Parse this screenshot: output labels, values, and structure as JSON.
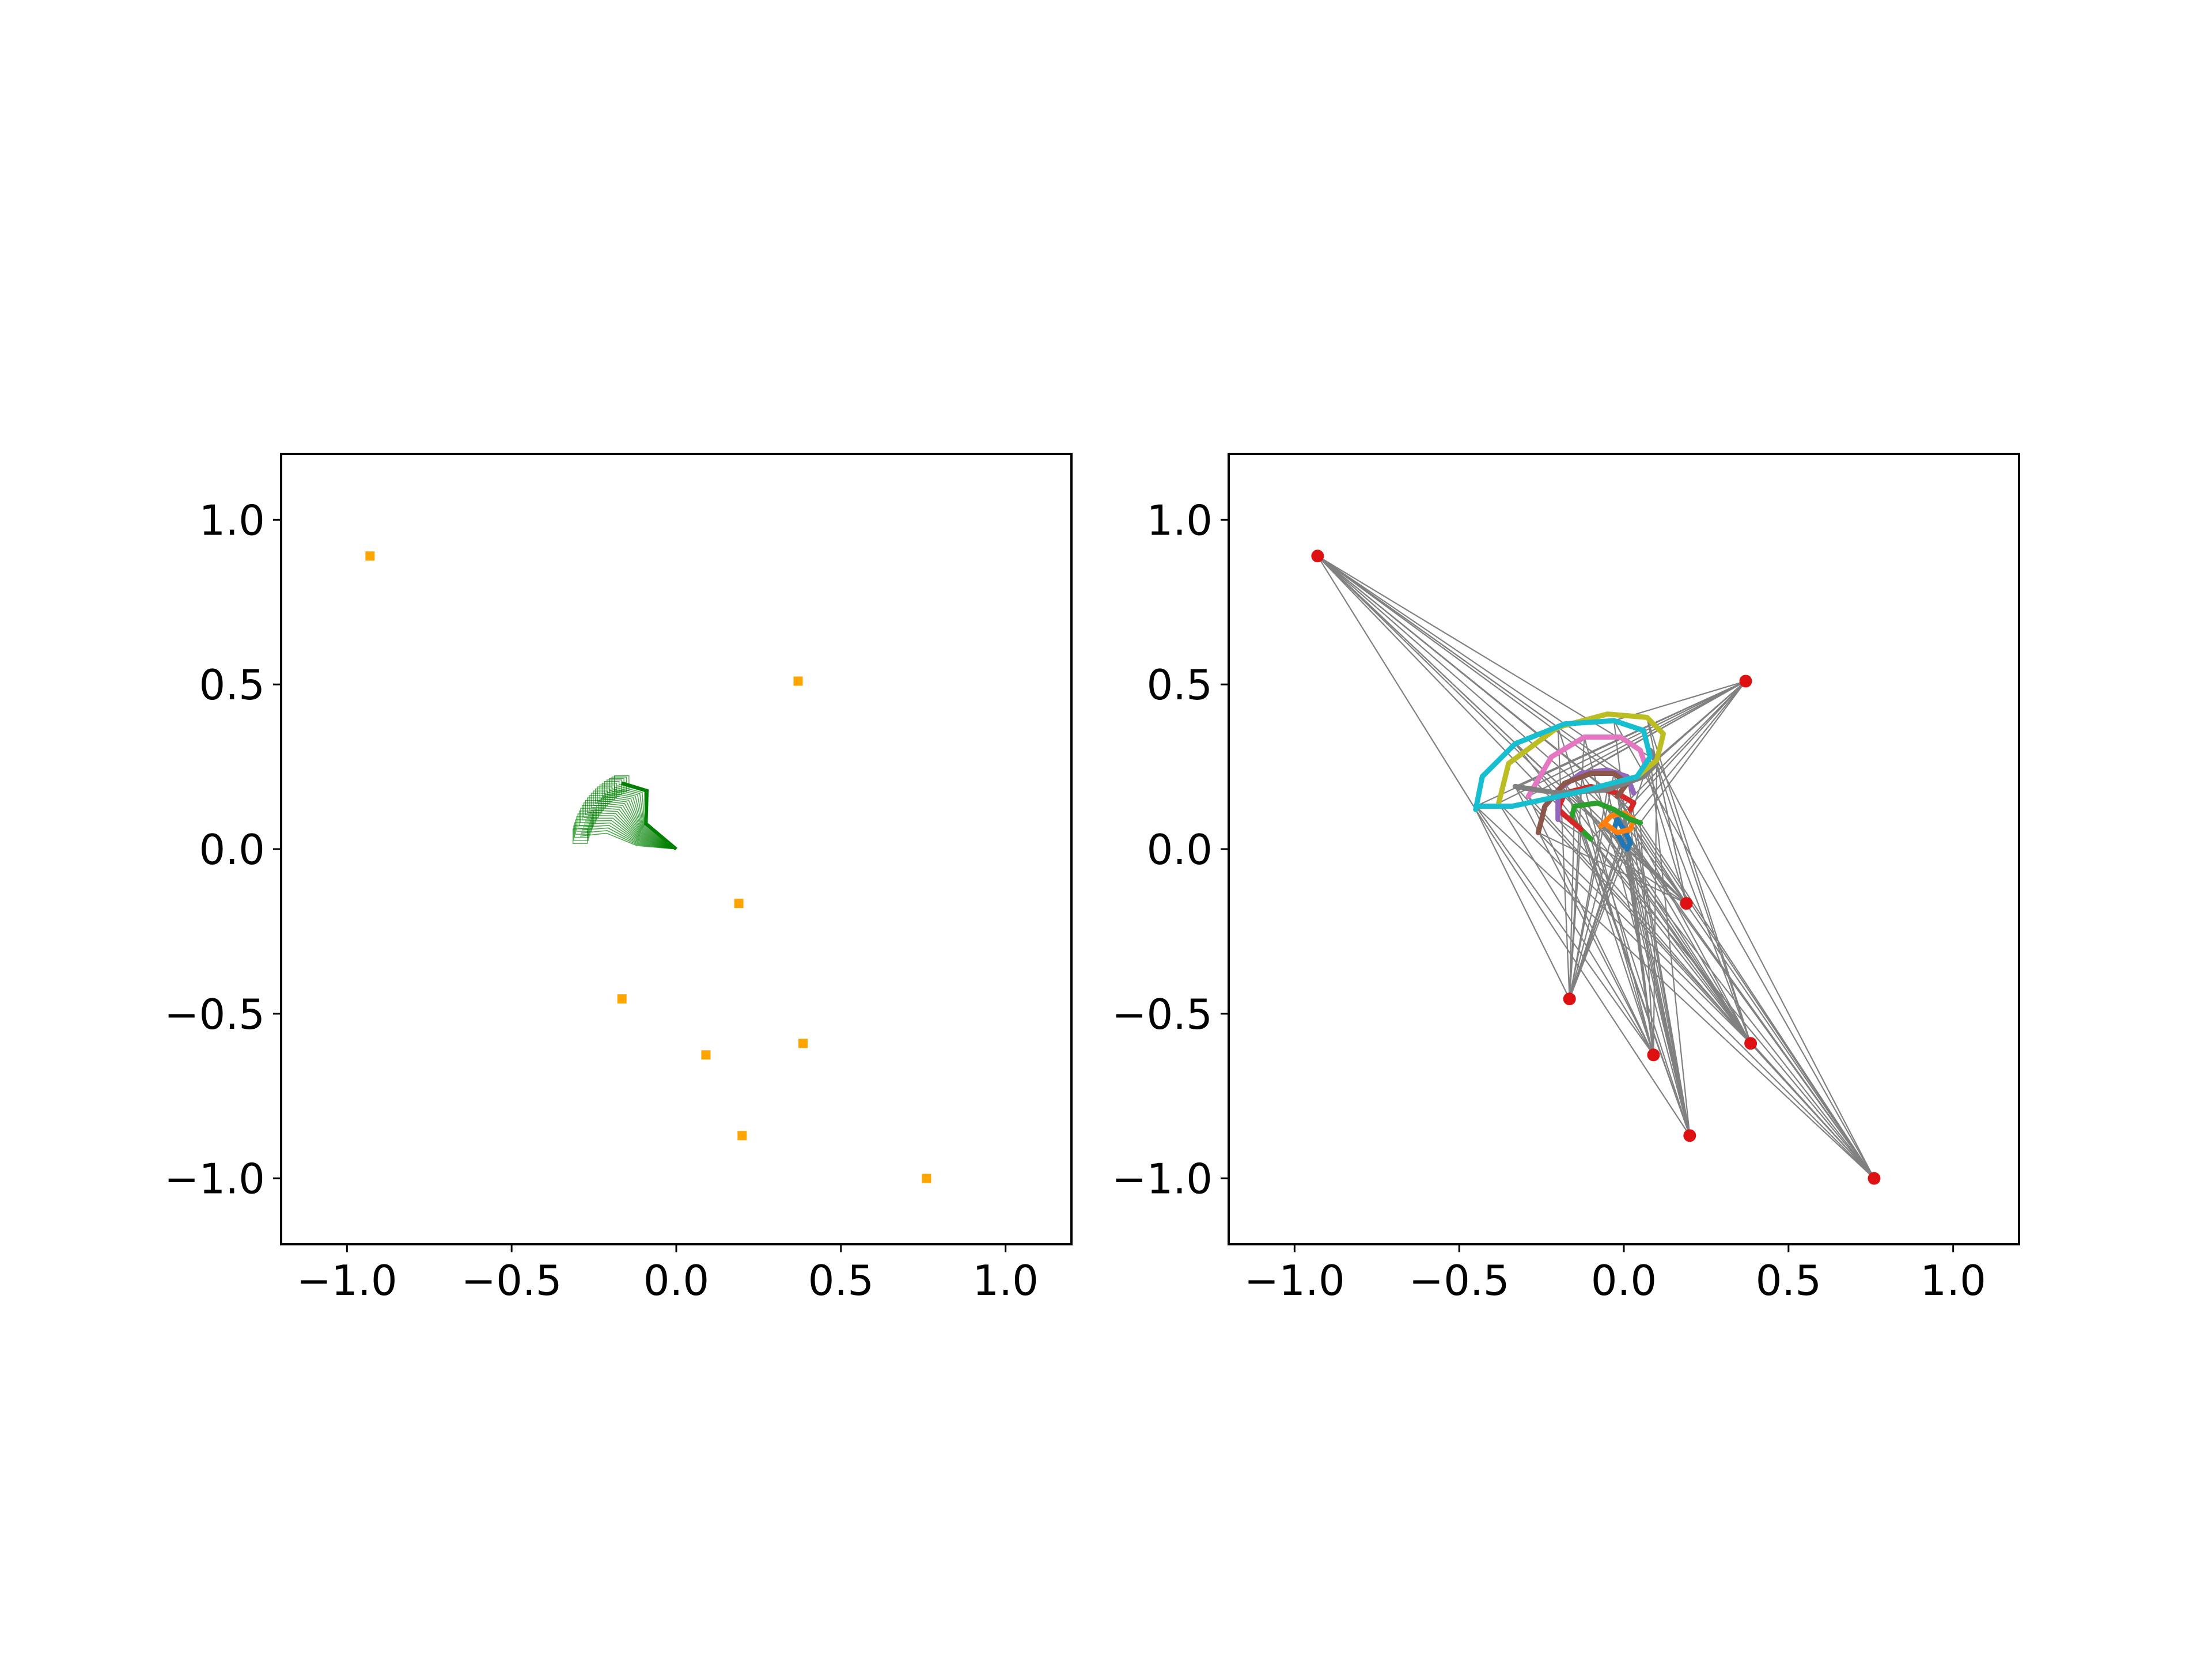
{
  "chart_data": [
    {
      "type": "scatter",
      "xlim": [
        -1.2,
        1.2
      ],
      "ylim": [
        -1.2,
        1.2
      ],
      "xticks": [
        -1.0,
        -0.5,
        0.0,
        0.5,
        1.0
      ],
      "yticks": [
        -1.0,
        -0.5,
        0.0,
        0.5,
        1.0
      ],
      "xtick_labels": [
        "−1.0",
        "−0.5",
        "0.0",
        "0.5",
        "1.0"
      ],
      "ytick_labels": [
        "−1.0",
        "−0.5",
        "0.0",
        "0.5",
        "1.0"
      ],
      "grid": false,
      "marker_color": "#ffa500",
      "arm_color": "#008000",
      "points": [
        {
          "x": -0.93,
          "y": 0.89
        },
        {
          "x": 0.37,
          "y": 0.51
        },
        {
          "x": 0.19,
          "y": -0.165
        },
        {
          "x": -0.165,
          "y": -0.455
        },
        {
          "x": 0.09,
          "y": -0.625
        },
        {
          "x": 0.385,
          "y": -0.59
        },
        {
          "x": 0.2,
          "y": -0.87
        },
        {
          "x": 0.76,
          "y": -1.0
        }
      ],
      "arm_sequence": {
        "base": [
          0.0,
          0.0
        ],
        "frames": 24,
        "link_lengths": [
          0.12,
          0.1,
          0.08
        ],
        "sweep_deg": [
          140,
          175
        ]
      }
    },
    {
      "type": "line",
      "xlim": [
        -1.2,
        1.2
      ],
      "ylim": [
        -1.2,
        1.2
      ],
      "xticks": [
        -1.0,
        -0.5,
        0.0,
        0.5,
        1.0
      ],
      "yticks": [
        -1.0,
        -0.5,
        0.0,
        0.5,
        1.0
      ],
      "xtick_labels": [
        "−1.0",
        "−0.5",
        "0.0",
        "0.5",
        "1.0"
      ],
      "ytick_labels": [
        "−1.0",
        "−0.5",
        "0.0",
        "0.5",
        "1.0"
      ],
      "grid": false,
      "point_color": "#dd1111",
      "connector_color": "#808080",
      "points": [
        {
          "x": -0.93,
          "y": 0.89
        },
        {
          "x": 0.37,
          "y": 0.51
        },
        {
          "x": 0.19,
          "y": -0.165
        },
        {
          "x": -0.165,
          "y": -0.455
        },
        {
          "x": 0.09,
          "y": -0.625
        },
        {
          "x": 0.385,
          "y": -0.59
        },
        {
          "x": 0.2,
          "y": -0.87
        },
        {
          "x": 0.76,
          "y": -1.0
        }
      ],
      "series": [
        {
          "color": "#1f77b4",
          "x": [
            0.0,
            -0.01,
            -0.03,
            -0.02,
            0.0,
            0.02,
            0.01
          ],
          "y": [
            0.01,
            0.03,
            0.06,
            0.09,
            0.06,
            0.02,
            0.0
          ]
        },
        {
          "color": "#ff7f0e",
          "x": [
            -0.07,
            -0.04,
            0.0,
            0.03,
            0.02,
            -0.02,
            -0.06
          ],
          "y": [
            0.07,
            0.1,
            0.11,
            0.09,
            0.06,
            0.05,
            0.08
          ]
        },
        {
          "color": "#2ca02c",
          "x": [
            -0.1,
            -0.16,
            -0.15,
            -0.08,
            -0.03,
            0.02,
            0.05
          ],
          "y": [
            0.03,
            0.09,
            0.13,
            0.14,
            0.12,
            0.09,
            0.08
          ]
        },
        {
          "color": "#d62728",
          "x": [
            -0.13,
            -0.2,
            -0.18,
            -0.1,
            -0.02,
            0.03,
            0.02
          ],
          "y": [
            0.06,
            0.12,
            0.17,
            0.19,
            0.17,
            0.14,
            0.12
          ]
        },
        {
          "color": "#9467bd",
          "x": [
            -0.2,
            -0.2,
            -0.13,
            -0.05,
            0.01,
            0.03
          ],
          "y": [
            0.09,
            0.18,
            0.23,
            0.24,
            0.22,
            0.17
          ]
        },
        {
          "color": "#8c564b",
          "x": [
            -0.26,
            -0.24,
            -0.18,
            -0.1,
            -0.03,
            0.01,
            -0.02
          ],
          "y": [
            0.05,
            0.13,
            0.2,
            0.23,
            0.23,
            0.2,
            0.16
          ]
        },
        {
          "color": "#e377c2",
          "x": [
            -0.29,
            -0.22,
            -0.12,
            -0.01,
            0.05,
            0.07
          ],
          "y": [
            0.16,
            0.28,
            0.34,
            0.34,
            0.3,
            0.24
          ]
        },
        {
          "color": "#7f7f7f",
          "x": [
            -0.33,
            -0.2,
            -0.05,
            0.06,
            0.1,
            0.08
          ],
          "y": [
            0.19,
            0.17,
            0.18,
            0.22,
            0.26,
            0.3
          ]
        },
        {
          "color": "#bcbd22",
          "x": [
            -0.38,
            -0.35,
            -0.2,
            -0.05,
            0.07,
            0.12,
            0.1,
            0.04
          ],
          "y": [
            0.14,
            0.26,
            0.37,
            0.41,
            0.4,
            0.35,
            0.27,
            0.22
          ]
        },
        {
          "color": "#17becf",
          "x": [
            -0.45,
            -0.43,
            -0.33,
            -0.18,
            -0.03,
            0.06,
            0.08,
            0.04,
            -0.15,
            -0.34,
            -0.45
          ],
          "y": [
            0.12,
            0.22,
            0.32,
            0.38,
            0.39,
            0.36,
            0.28,
            0.22,
            0.17,
            0.13,
            0.13
          ]
        }
      ]
    }
  ]
}
